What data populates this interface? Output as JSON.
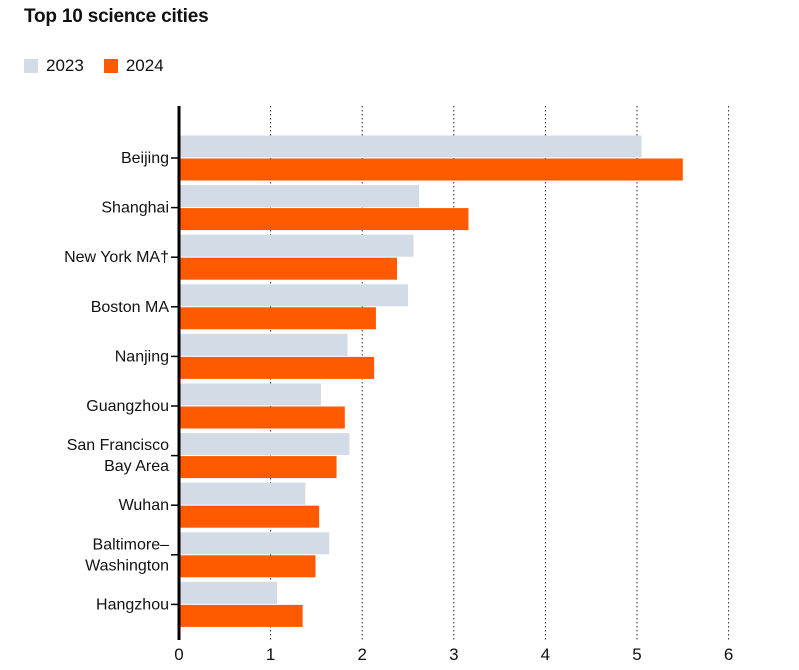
{
  "chart_data": {
    "type": "bar",
    "orientation": "horizontal",
    "title": "Top 10 science cities",
    "xlim": [
      0,
      6
    ],
    "xticks": [
      "0",
      "1",
      "2",
      "3",
      "4",
      "5",
      "6"
    ],
    "grid": "vertical dotted",
    "legend_position": "top-left",
    "categories": [
      [
        "Beijing"
      ],
      [
        "Shanghai"
      ],
      [
        "New York MA†"
      ],
      [
        "Boston MA"
      ],
      [
        "Nanjing"
      ],
      [
        "Guangzhou"
      ],
      [
        "San Francisco",
        "Bay Area"
      ],
      [
        "Wuhan"
      ],
      [
        "Baltimore–",
        "Washington"
      ],
      [
        "Hangzhou"
      ]
    ],
    "series": [
      {
        "name": "2023",
        "color": "#d3dce6",
        "values": [
          5.05,
          2.62,
          2.56,
          2.5,
          1.84,
          1.55,
          1.86,
          1.38,
          1.64,
          1.07
        ]
      },
      {
        "name": "2024",
        "color": "#ff5a00",
        "values": [
          5.5,
          3.16,
          2.38,
          2.15,
          2.13,
          1.81,
          1.72,
          1.53,
          1.49,
          1.35
        ]
      }
    ]
  }
}
